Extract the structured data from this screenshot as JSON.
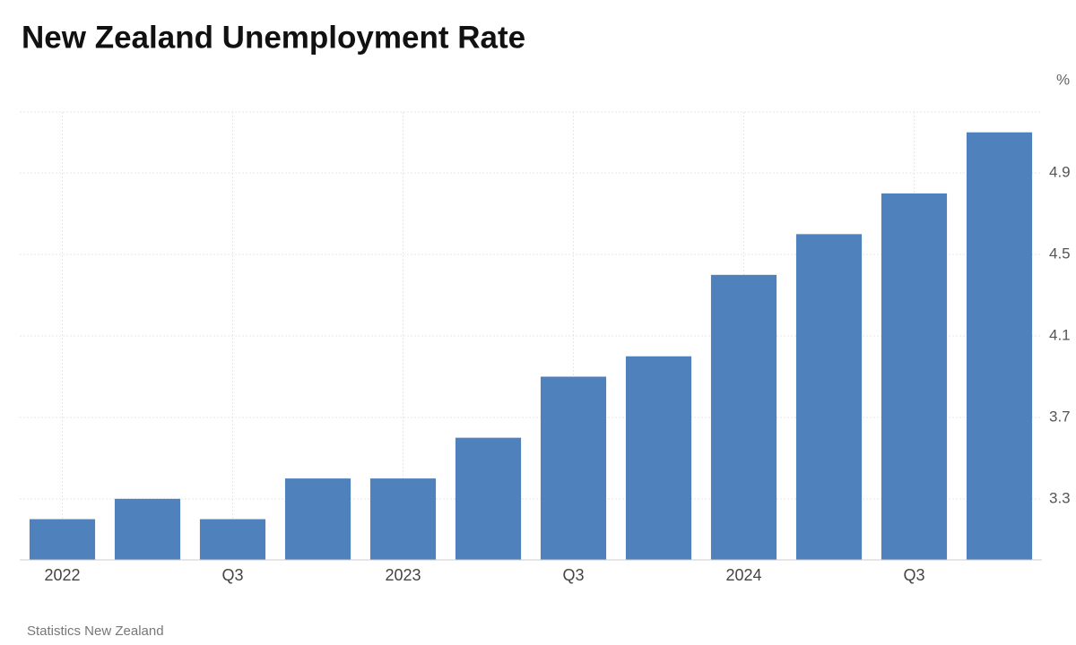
{
  "chart_data": {
    "type": "bar",
    "title": "New Zealand Unemployment Rate",
    "unit": "%",
    "source": "Statistics New Zealand",
    "categories": [
      "2022",
      null,
      "Q3",
      null,
      "2023",
      null,
      "Q3",
      null,
      "2024",
      null,
      "Q3",
      null
    ],
    "values": [
      3.2,
      3.3,
      3.2,
      3.4,
      3.4,
      3.6,
      3.9,
      4.0,
      4.4,
      4.6,
      4.8,
      5.1
    ],
    "color": "#4f81bd",
    "ylim": [
      3.0,
      5.2
    ],
    "yticks": [
      3.3,
      3.7,
      4.1,
      4.5,
      4.9
    ],
    "grid": true
  }
}
